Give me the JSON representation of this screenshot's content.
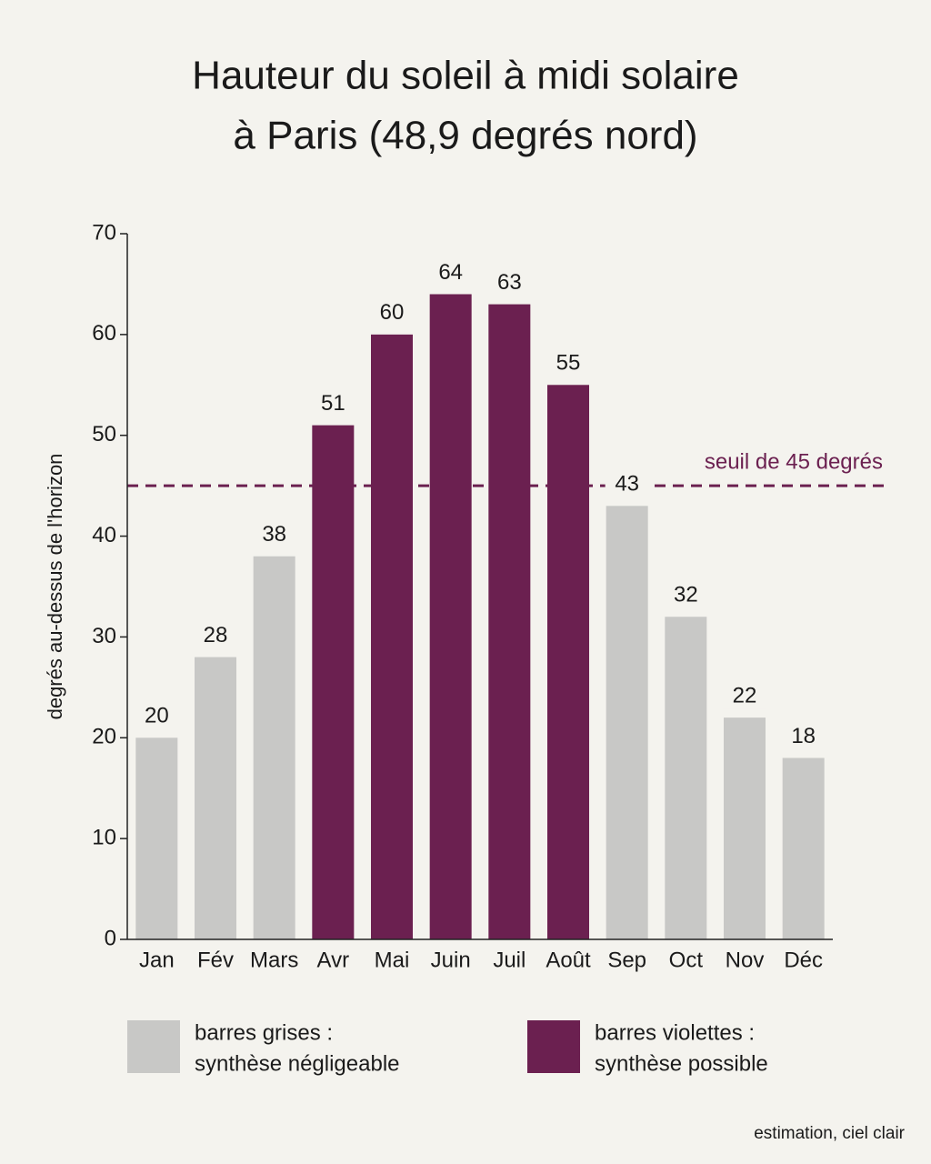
{
  "chart_data": {
    "type": "bar",
    "title": [
      "Hauteur du soleil à midi solaire",
      "à Paris (48,9 degrés nord)"
    ],
    "ylabel": "degrés au-dessus de l'horizon",
    "categories": [
      "Jan",
      "Fév",
      "Mars",
      "Avr",
      "Mai",
      "Juin",
      "Juil",
      "Août",
      "Sep",
      "Oct",
      "Nov",
      "Déc"
    ],
    "values": [
      20,
      28,
      38,
      51,
      60,
      64,
      63,
      55,
      43,
      32,
      22,
      18
    ],
    "colors": [
      "#c8c8c6",
      "#c8c8c6",
      "#c8c8c6",
      "#6b2050",
      "#6b2050",
      "#6b2050",
      "#6b2050",
      "#6b2050",
      "#c8c8c6",
      "#c8c8c6",
      "#c8c8c6",
      "#c8c8c6"
    ],
    "ylim": [
      0,
      70
    ],
    "yticks": [
      0,
      10,
      20,
      30,
      40,
      50,
      60,
      70
    ],
    "threshold": {
      "value": 45,
      "label": "seuil de 45 degrés",
      "color": "#6b2050"
    },
    "legend": [
      {
        "label": [
          "barres grises :",
          "synthèse négligeable"
        ],
        "color": "#c8c8c6"
      },
      {
        "label": [
          "barres violettes :",
          "synthèse possible"
        ],
        "color": "#6b2050"
      }
    ],
    "note": "estimation, ciel clair"
  }
}
